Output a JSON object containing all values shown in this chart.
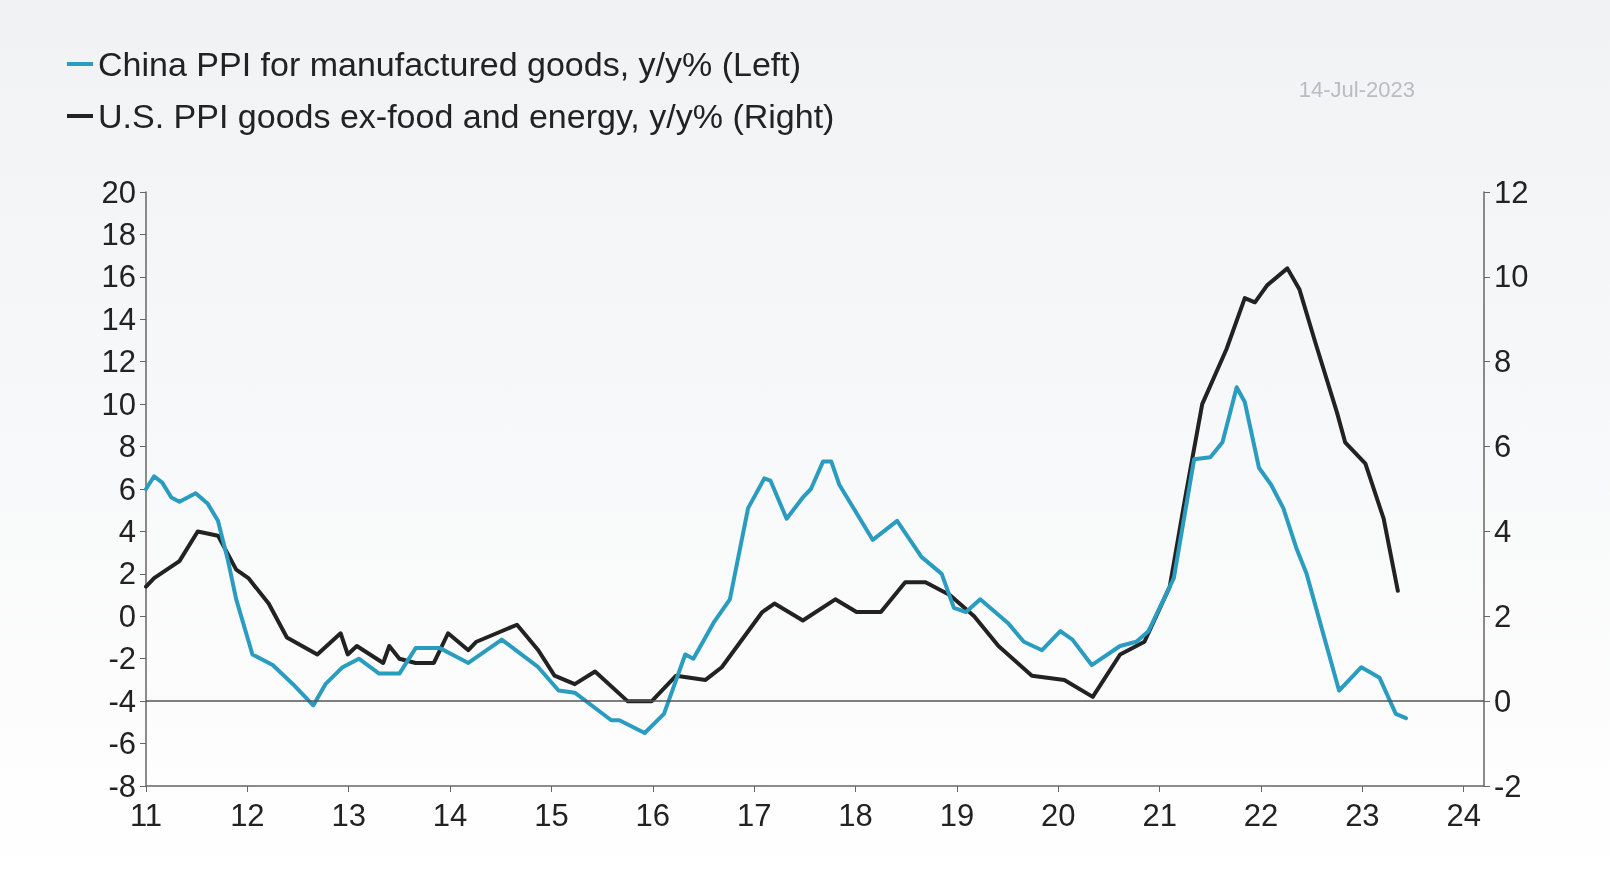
{
  "chart_data": {
    "type": "line",
    "legend": "top left",
    "grid": false,
    "line_style": "solid",
    "marker": "none",
    "annotations": [
      "14-Jul-2023"
    ],
    "xlim": [
      11,
      24.2
    ],
    "xticks": [
      11,
      12,
      13,
      14,
      15,
      16,
      17,
      18,
      19,
      20,
      21,
      22,
      23,
      24
    ],
    "ylim": [
      -8,
      20
    ],
    "yticks": [
      -8,
      -6,
      -4,
      -2,
      0,
      2,
      4,
      6,
      8,
      10,
      12,
      14,
      16,
      18,
      20
    ],
    "y2lim": [
      -2,
      12
    ],
    "y2ticks": [
      -2,
      0,
      2,
      4,
      6,
      8,
      10,
      12
    ],
    "ref_lines": [
      {
        "axis": "y2",
        "value": 0,
        "label": null,
        "color": "#555555",
        "line_style": "solid"
      }
    ],
    "series": [
      {
        "name": "China PPI for manufactured goods, y/y% (Left)",
        "color": "#2a9cc0",
        "x": [
          11.0,
          11.08,
          11.16,
          11.25,
          11.33,
          11.49,
          11.61,
          11.71,
          11.81,
          11.89,
          12.05,
          12.25,
          12.45,
          12.65,
          12.77,
          12.94,
          13.1,
          13.3,
          13.5,
          13.66,
          13.9,
          14.02,
          14.18,
          14.51,
          14.87,
          15.07,
          15.23,
          15.59,
          15.67,
          15.92,
          16.11,
          16.32,
          16.4,
          16.6,
          16.76,
          16.94,
          17.1,
          17.16,
          17.32,
          17.48,
          17.56,
          17.68,
          17.76,
          17.84,
          18.17,
          18.41,
          18.65,
          18.85,
          18.97,
          19.09,
          19.23,
          19.5,
          19.66,
          19.84,
          20.02,
          20.14,
          20.33,
          20.61,
          20.77,
          20.89,
          21.02,
          21.14,
          21.34,
          21.5,
          21.62,
          21.76,
          21.84,
          21.98,
          22.1,
          22.22,
          22.35,
          22.45,
          22.63,
          22.77,
          22.99,
          23.17,
          23.33,
          23.43
        ],
        "values": [
          6.0,
          6.6,
          6.3,
          5.6,
          5.4,
          5.8,
          5.3,
          4.5,
          2.6,
          0.8,
          -1.8,
          -2.3,
          -3.2,
          -4.2,
          -3.2,
          -2.4,
          -2.0,
          -2.7,
          -2.7,
          -1.5,
          -1.5,
          -1.8,
          -2.2,
          -1.1,
          -2.4,
          -3.5,
          -3.6,
          -4.9,
          -4.9,
          -5.5,
          -4.6,
          -1.8,
          -2.0,
          -0.3,
          0.8,
          5.1,
          6.5,
          6.4,
          4.6,
          5.6,
          6.0,
          7.3,
          7.3,
          6.2,
          3.6,
          4.5,
          2.8,
          2.0,
          0.4,
          0.2,
          0.8,
          -0.3,
          -1.2,
          -1.6,
          -0.7,
          -1.1,
          -2.3,
          -1.4,
          -1.2,
          -0.7,
          0.6,
          1.8,
          7.4,
          7.5,
          8.2,
          10.8,
          10.1,
          7.0,
          6.2,
          5.1,
          3.2,
          2.0,
          -1.1,
          -3.5,
          -2.4,
          -2.9,
          -4.6,
          -4.8
        ]
      },
      {
        "name": "U.S. PPI goods ex-food and energy, y/y% (Right)",
        "color": "#222222",
        "axis": "y2",
        "x": [
          11.0,
          11.08,
          11.33,
          11.51,
          11.71,
          11.89,
          12.01,
          12.21,
          12.39,
          12.69,
          12.92,
          12.99,
          13.08,
          13.34,
          13.4,
          13.5,
          13.66,
          13.84,
          13.98,
          14.18,
          14.26,
          14.46,
          14.66,
          14.87,
          15.03,
          15.23,
          15.43,
          15.75,
          15.99,
          16.23,
          16.52,
          16.68,
          17.08,
          17.2,
          17.48,
          17.8,
          18.01,
          18.25,
          18.49,
          18.69,
          18.93,
          19.17,
          19.41,
          19.74,
          20.06,
          20.34,
          20.61,
          20.85,
          21.1,
          21.26,
          21.42,
          21.66,
          21.84,
          21.94,
          22.06,
          22.26,
          22.38,
          22.53,
          22.75,
          22.83,
          23.03,
          23.21,
          23.35
        ],
        "values": [
          2.7,
          2.9,
          3.3,
          4.0,
          3.9,
          3.1,
          2.9,
          2.3,
          1.5,
          1.1,
          1.6,
          1.1,
          1.3,
          0.9,
          1.3,
          1.0,
          0.9,
          0.9,
          1.6,
          1.2,
          1.4,
          1.6,
          1.8,
          1.2,
          0.6,
          0.4,
          0.7,
          0.0,
          0.0,
          0.6,
          0.5,
          0.8,
          2.1,
          2.3,
          1.9,
          2.4,
          2.1,
          2.1,
          2.8,
          2.8,
          2.5,
          2.0,
          1.3,
          0.6,
          0.5,
          0.1,
          1.1,
          1.4,
          2.7,
          4.9,
          7.0,
          8.3,
          9.5,
          9.4,
          9.8,
          10.2,
          9.7,
          8.5,
          6.8,
          6.1,
          5.6,
          4.3,
          2.6
        ]
      }
    ]
  }
}
